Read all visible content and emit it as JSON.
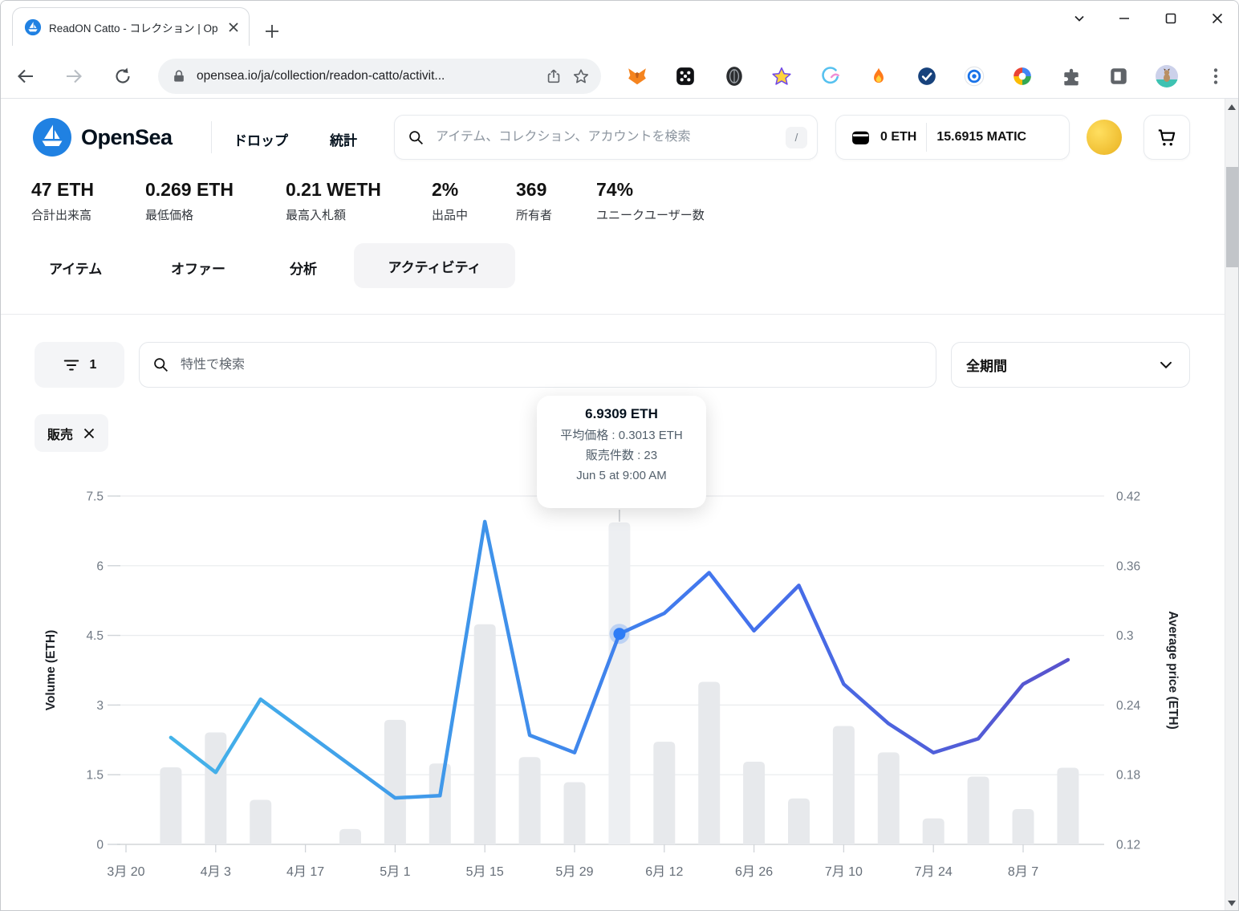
{
  "browser": {
    "tab_title": "ReadON Catto - コレクション | Op",
    "url": "opensea.io/ja/collection/readon-catto/activit...",
    "extensions": [
      "metamask",
      "dots-app",
      "dark-badge",
      "star",
      "bird",
      "flame",
      "check-badge",
      "target",
      "google",
      "puzzle",
      "panel",
      "profile",
      "menu"
    ]
  },
  "header": {
    "brand": "OpenSea",
    "nav_drops": "ドロップ",
    "nav_stats": "統計",
    "search_placeholder": "アイテム、コレクション、アカウントを検索",
    "search_shortcut": "/",
    "wallet_eth": "0 ETH",
    "wallet_matic": "15.6915 MATIC"
  },
  "stats": [
    {
      "value": "47 ETH",
      "label": "合計出来高"
    },
    {
      "value": "0.269 ETH",
      "label": "最低価格"
    },
    {
      "value": "0.21 WETH",
      "label": "最高入札額"
    },
    {
      "value": "2%",
      "label": "出品中"
    },
    {
      "value": "369",
      "label": "所有者"
    },
    {
      "value": "74%",
      "label": "ユニークユーザー数"
    }
  ],
  "collection_tabs": [
    {
      "label": "アイテム",
      "active": false
    },
    {
      "label": "オファー",
      "active": false
    },
    {
      "label": "分析",
      "active": false
    },
    {
      "label": "アクティビティ",
      "active": true
    }
  ],
  "filters": {
    "filter_count": "1",
    "trait_search_placeholder": "特性で検索",
    "period": "全期間",
    "active_chip": "販売"
  },
  "tooltip": {
    "title": "6.9309 ETH",
    "avg_price_line": "平均価格 : 0.3013 ETH",
    "sales_line": "販売件数 : 23",
    "date_line": "Jun 5 at 9:00 AM"
  },
  "chart_data": {
    "type": "bar+line",
    "x_axis_labels": [
      {
        "key": "3/20",
        "label": "3月 20"
      },
      {
        "key": "4/3",
        "label": "4月 3"
      },
      {
        "key": "4/17",
        "label": "4月 17"
      },
      {
        "key": "5/1",
        "label": "5月 1"
      },
      {
        "key": "5/15",
        "label": "5月 15"
      },
      {
        "key": "5/29",
        "label": "5月 29"
      },
      {
        "key": "6/12",
        "label": "6月 12"
      },
      {
        "key": "6/26",
        "label": "6月 26"
      },
      {
        "key": "7/10",
        "label": "7月 10"
      },
      {
        "key": "7/24",
        "label": "7月 24"
      },
      {
        "key": "8/7",
        "label": "8月 7"
      }
    ],
    "left_axis": {
      "title": "Volume (ETH)",
      "ticks": [
        "0",
        "1.5",
        "3",
        "4.5",
        "6",
        "7.5"
      ],
      "range": [
        0,
        7.5
      ]
    },
    "right_axis": {
      "title": "Average price (ETH)",
      "ticks": [
        "0.12",
        "0.18",
        "0.24",
        "0.3",
        "0.36",
        "0.42"
      ],
      "range": [
        0.12,
        0.42
      ]
    },
    "bars": {
      "name": "Volume (ETH)",
      "color": "#e7e9ec",
      "selected_color": "#edeff2",
      "points": [
        {
          "date": "3/27",
          "value": 1.66
        },
        {
          "date": "4/3",
          "value": 2.41
        },
        {
          "date": "4/10",
          "value": 0.96
        },
        {
          "date": "4/17",
          "value": 0
        },
        {
          "date": "4/24",
          "value": 0.33
        },
        {
          "date": "5/1",
          "value": 2.68
        },
        {
          "date": "5/8",
          "value": 1.74
        },
        {
          "date": "5/15",
          "value": 4.74
        },
        {
          "date": "5/22",
          "value": 1.88
        },
        {
          "date": "5/29",
          "value": 1.34
        },
        {
          "date": "6/5",
          "value": 6.9309
        },
        {
          "date": "6/12",
          "value": 2.21
        },
        {
          "date": "6/19",
          "value": 3.5
        },
        {
          "date": "6/26",
          "value": 1.78
        },
        {
          "date": "7/3",
          "value": 0.99
        },
        {
          "date": "7/10",
          "value": 2.55
        },
        {
          "date": "7/17",
          "value": 1.98
        },
        {
          "date": "7/24",
          "value": 0.56
        },
        {
          "date": "7/31",
          "value": 1.46
        },
        {
          "date": "8/7",
          "value": 0.76
        },
        {
          "date": "8/14",
          "value": 1.65
        }
      ]
    },
    "line": {
      "name": "Average price (ETH)",
      "gradient": [
        "#45b8e9",
        "#3f95ea",
        "#4273ee",
        "#5b4fc9"
      ],
      "points": [
        {
          "date": "3/27",
          "value": 0.212
        },
        {
          "date": "4/3",
          "value": 0.182
        },
        {
          "date": "4/10",
          "value": 0.245
        },
        {
          "date": "5/1",
          "value": 0.16
        },
        {
          "date": "5/8",
          "value": 0.162
        },
        {
          "date": "5/15",
          "value": 0.398
        },
        {
          "date": "5/22",
          "value": 0.214
        },
        {
          "date": "5/29",
          "value": 0.199
        },
        {
          "date": "6/5",
          "value": 0.3013
        },
        {
          "date": "6/12",
          "value": 0.319
        },
        {
          "date": "6/19",
          "value": 0.354
        },
        {
          "date": "6/26",
          "value": 0.304
        },
        {
          "date": "7/3",
          "value": 0.343
        },
        {
          "date": "7/10",
          "value": 0.258
        },
        {
          "date": "7/17",
          "value": 0.224
        },
        {
          "date": "7/24",
          "value": 0.199
        },
        {
          "date": "7/31",
          "value": 0.211
        },
        {
          "date": "8/7",
          "value": 0.258
        },
        {
          "date": "8/14",
          "value": 0.279
        }
      ]
    },
    "selected_point": {
      "date": "6/5",
      "volume_eth": 6.9309,
      "avg_price_eth": 0.3013,
      "sales_count": 23,
      "datetime": "Jun 5 at 9:00 AM",
      "dot_color": "#2e7cf6"
    },
    "grid_color": "#e9ebee",
    "axis_color": "#c9cdd1"
  }
}
